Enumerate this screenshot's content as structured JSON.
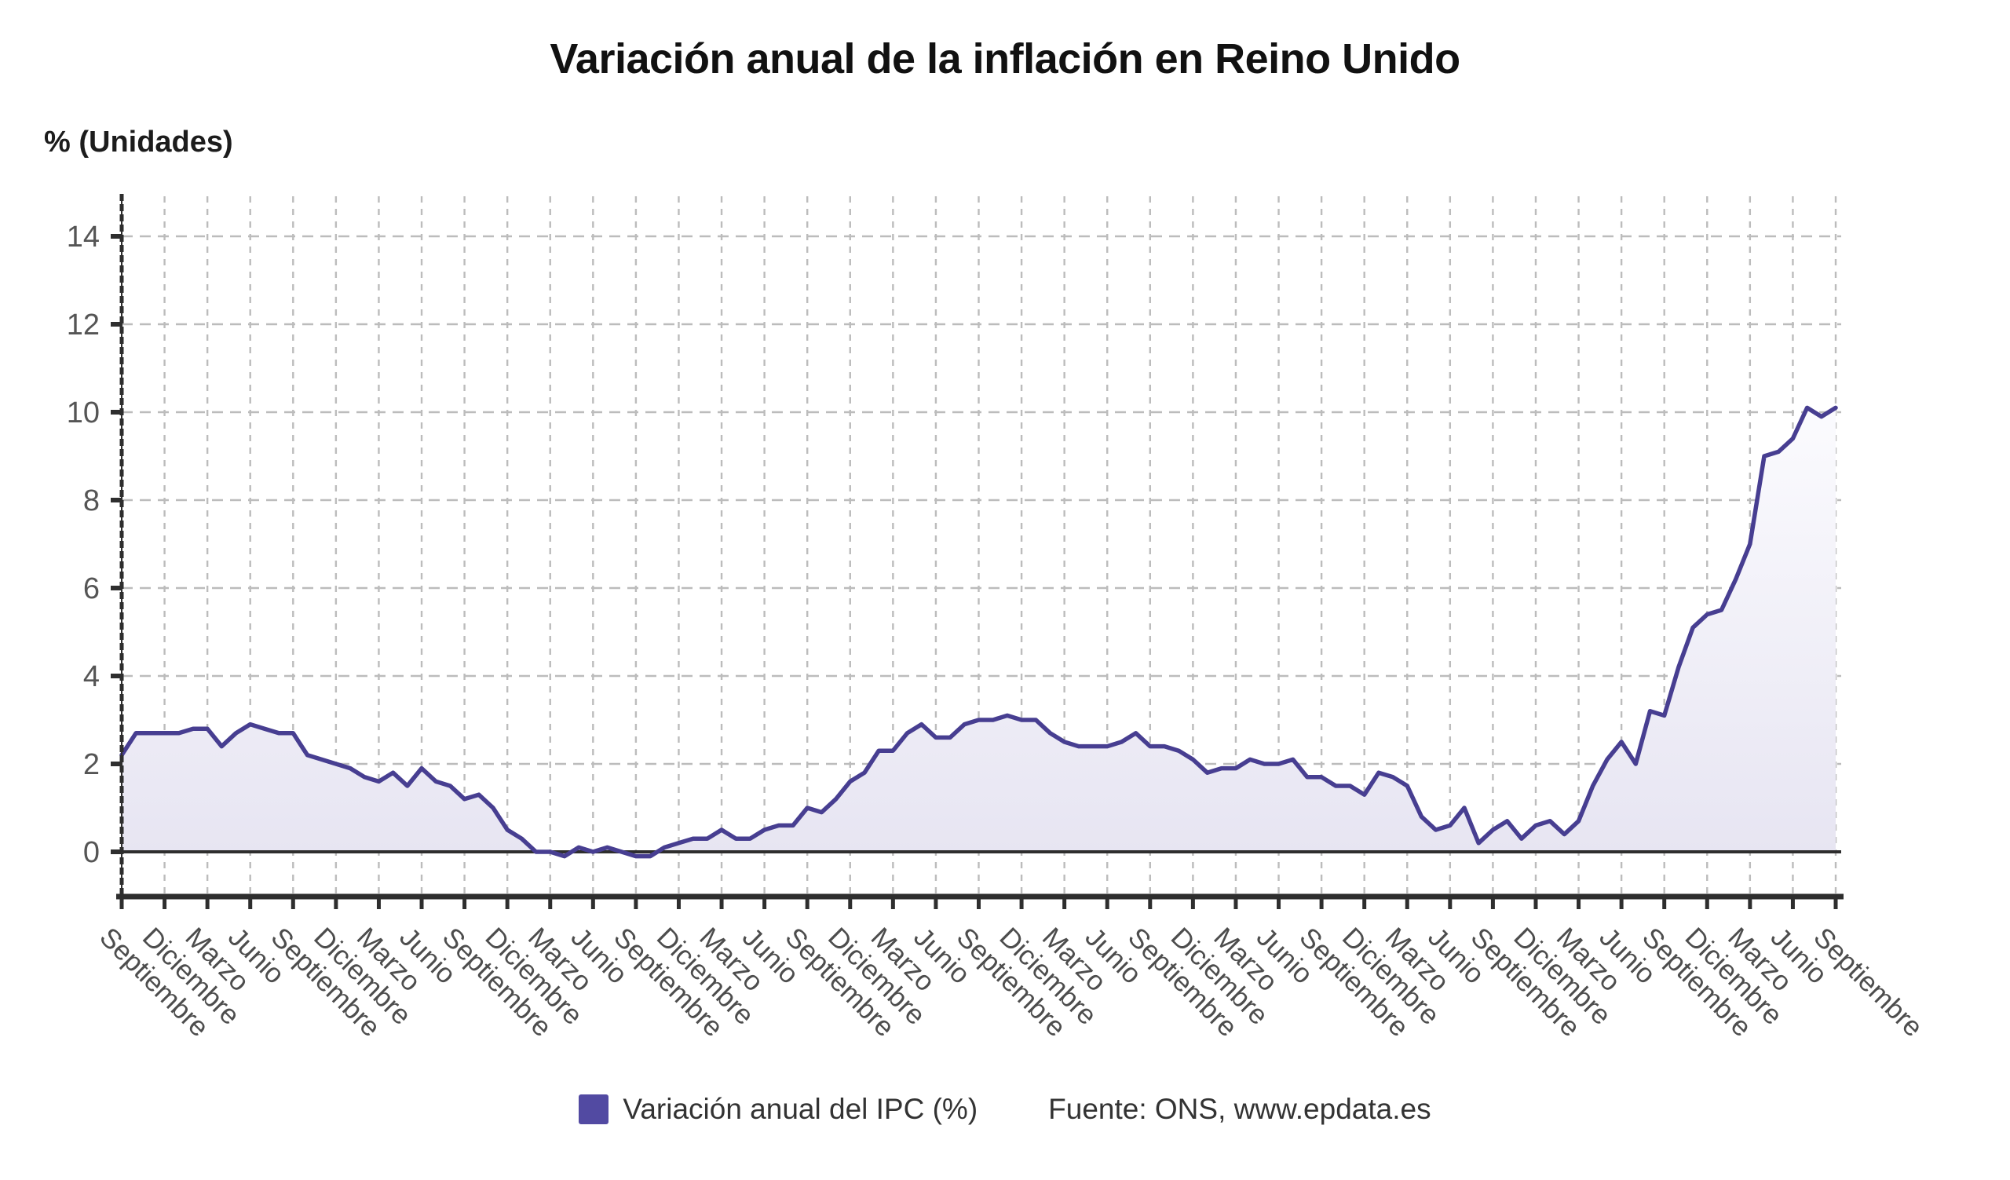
{
  "header": {
    "title": "Variación anual de la inflación en Reino Unido"
  },
  "axes": {
    "y_label": "% (Unidades)"
  },
  "legend": {
    "series_label": "Variación anual del IPC (%)",
    "source_prefix": "Fuente: ONS, ",
    "source_url": "www.epdata.es"
  },
  "colors": {
    "line": "#473E91",
    "legend_swatch": "#524AA2",
    "area_top": "#fbfbfe",
    "area_bottom": "#e7e5f2",
    "grid": "#bcbcbc",
    "axis": "#2e2e2e",
    "zero_line": "#2e2e2e",
    "tick_text": "#4d4d4d",
    "y_tick_text": "#555555"
  },
  "chart_data": {
    "type": "area",
    "title": "Variación anual de la inflación en Reino Unido",
    "xlabel": "",
    "ylabel": "% (Unidades)",
    "ylim": [
      -1,
      15
    ],
    "y_ticks": [
      0,
      2,
      4,
      6,
      8,
      10,
      12,
      14
    ],
    "grid": true,
    "legend_position": "bottom",
    "x_tick_every_n_points": 3,
    "x_tick_labels": [
      "Septiembre",
      "Diciembre",
      "Marzo",
      "Junio",
      "Septiembre",
      "Diciembre",
      "Marzo",
      "Junio",
      "Septiembre",
      "Diciembre",
      "Marzo",
      "Junio",
      "Septiembre",
      "Diciembre",
      "Marzo",
      "Junio",
      "Septiembre",
      "Diciembre",
      "Marzo",
      "Junio",
      "Septiembre",
      "Diciembre",
      "Marzo",
      "Junio",
      "Septiembre",
      "Diciembre",
      "Marzo",
      "Junio",
      "Septiembre",
      "Diciembre",
      "Marzo",
      "Junio",
      "Septiembre",
      "Diciembre",
      "Marzo",
      "Junio",
      "Septiembre",
      "Diciembre",
      "Marzo",
      "Junio",
      "Septiembre"
    ],
    "series": [
      {
        "name": "Variación anual del IPC (%)",
        "values": [
          2.2,
          2.7,
          2.7,
          2.7,
          2.7,
          2.8,
          2.8,
          2.4,
          2.7,
          2.9,
          2.8,
          2.7,
          2.7,
          2.2,
          2.1,
          2.0,
          1.9,
          1.7,
          1.6,
          1.8,
          1.5,
          1.9,
          1.6,
          1.5,
          1.2,
          1.3,
          1.0,
          0.5,
          0.3,
          0.0,
          0.0,
          -0.1,
          0.1,
          0.0,
          0.1,
          0.0,
          -0.1,
          -0.1,
          0.1,
          0.2,
          0.3,
          0.3,
          0.5,
          0.3,
          0.3,
          0.5,
          0.6,
          0.6,
          1.0,
          0.9,
          1.2,
          1.6,
          1.8,
          2.3,
          2.3,
          2.7,
          2.9,
          2.6,
          2.6,
          2.9,
          3.0,
          3.0,
          3.1,
          3.0,
          3.0,
          2.7,
          2.5,
          2.4,
          2.4,
          2.4,
          2.5,
          2.7,
          2.4,
          2.4,
          2.3,
          2.1,
          1.8,
          1.9,
          1.9,
          2.1,
          2.0,
          2.0,
          2.1,
          1.7,
          1.7,
          1.5,
          1.5,
          1.3,
          1.8,
          1.7,
          1.5,
          0.8,
          0.5,
          0.6,
          1.0,
          0.2,
          0.5,
          0.7,
          0.3,
          0.6,
          0.7,
          0.4,
          0.7,
          1.5,
          2.1,
          2.5,
          2.0,
          3.2,
          3.1,
          4.2,
          5.1,
          5.4,
          5.5,
          6.2,
          7.0,
          9.0,
          9.1,
          9.4,
          10.1,
          9.9,
          10.1
        ]
      }
    ]
  }
}
